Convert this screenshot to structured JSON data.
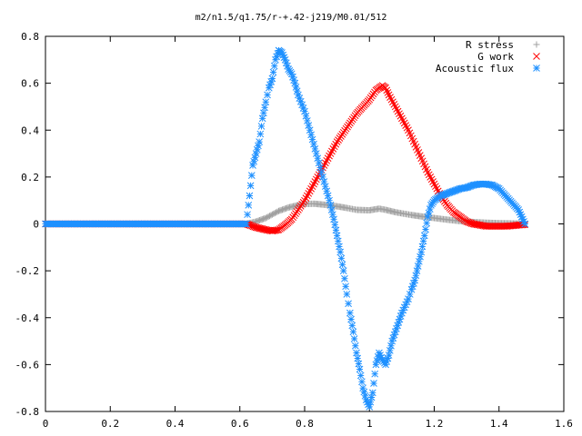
{
  "chart_data": {
    "type": "scatter",
    "title": "m2/n1.5/q1.75/r-+.42-j219/M0.01/512",
    "xlabel": "",
    "ylabel": "",
    "xlim": [
      0,
      1.6
    ],
    "ylim": [
      -0.8,
      0.8
    ],
    "xticks": [
      0,
      0.2,
      0.4,
      0.6,
      0.8,
      1,
      1.2,
      1.4,
      1.6
    ],
    "xtick_labels": [
      "0",
      "0.2",
      "0.4",
      "0.6",
      "0.8",
      "1",
      "1.2",
      "1.4",
      "1.6"
    ],
    "yticks": [
      -0.8,
      -0.6,
      -0.4,
      -0.2,
      0,
      0.2,
      0.4,
      0.6,
      0.8
    ],
    "ytick_labels": [
      "-0.8",
      "-0.6",
      "-0.4",
      "-0.2",
      "0",
      "0.2",
      "0.4",
      "0.6",
      "0.8"
    ],
    "grid": false,
    "legend_position": "top-right",
    "series": [
      {
        "name": "R stress",
        "marker": "plus",
        "color": "#a0a0a0",
        "points": [
          [
            0,
            0
          ],
          [
            0.2,
            0
          ],
          [
            0.4,
            0
          ],
          [
            0.62,
            0
          ],
          [
            0.63,
            0.003
          ],
          [
            0.65,
            0.01
          ],
          [
            0.68,
            0.025
          ],
          [
            0.7,
            0.04
          ],
          [
            0.72,
            0.055
          ],
          [
            0.75,
            0.07
          ],
          [
            0.78,
            0.08
          ],
          [
            0.8,
            0.085
          ],
          [
            0.83,
            0.086
          ],
          [
            0.86,
            0.082
          ],
          [
            0.9,
            0.075
          ],
          [
            0.93,
            0.068
          ],
          [
            0.96,
            0.06
          ],
          [
            1.0,
            0.058
          ],
          [
            1.03,
            0.065
          ],
          [
            1.05,
            0.06
          ],
          [
            1.08,
            0.05
          ],
          [
            1.1,
            0.045
          ],
          [
            1.13,
            0.038
          ],
          [
            1.16,
            0.032
          ],
          [
            1.2,
            0.025
          ],
          [
            1.24,
            0.018
          ],
          [
            1.28,
            0.012
          ],
          [
            1.32,
            0.008
          ],
          [
            1.36,
            0.005
          ],
          [
            1.4,
            0.003
          ],
          [
            1.44,
            0.002
          ],
          [
            1.48,
            0.001
          ]
        ]
      },
      {
        "name": "G work",
        "marker": "cross",
        "color": "#ff0000",
        "points": [
          [
            0,
            0
          ],
          [
            0.2,
            0
          ],
          [
            0.4,
            0
          ],
          [
            0.62,
            0
          ],
          [
            0.63,
            -0.005
          ],
          [
            0.65,
            -0.015
          ],
          [
            0.68,
            -0.025
          ],
          [
            0.7,
            -0.03
          ],
          [
            0.72,
            -0.025
          ],
          [
            0.74,
            -0.005
          ],
          [
            0.76,
            0.02
          ],
          [
            0.78,
            0.06
          ],
          [
            0.8,
            0.1
          ],
          [
            0.82,
            0.15
          ],
          [
            0.84,
            0.2
          ],
          [
            0.86,
            0.25
          ],
          [
            0.88,
            0.3
          ],
          [
            0.9,
            0.35
          ],
          [
            0.92,
            0.39
          ],
          [
            0.94,
            0.43
          ],
          [
            0.96,
            0.47
          ],
          [
            0.98,
            0.5
          ],
          [
            1.0,
            0.53
          ],
          [
            1.02,
            0.57
          ],
          [
            1.04,
            0.59
          ],
          [
            1.05,
            0.58
          ],
          [
            1.06,
            0.55
          ],
          [
            1.08,
            0.5
          ],
          [
            1.1,
            0.45
          ],
          [
            1.12,
            0.4
          ],
          [
            1.14,
            0.34
          ],
          [
            1.16,
            0.28
          ],
          [
            1.18,
            0.22
          ],
          [
            1.2,
            0.17
          ],
          [
            1.22,
            0.12
          ],
          [
            1.24,
            0.08
          ],
          [
            1.26,
            0.05
          ],
          [
            1.28,
            0.03
          ],
          [
            1.3,
            0.01
          ],
          [
            1.32,
            0.0
          ],
          [
            1.34,
            -0.005
          ],
          [
            1.36,
            -0.01
          ],
          [
            1.38,
            -0.01
          ],
          [
            1.4,
            -0.01
          ],
          [
            1.42,
            -0.01
          ],
          [
            1.44,
            -0.008
          ],
          [
            1.46,
            -0.005
          ],
          [
            1.48,
            -0.003
          ]
        ]
      },
      {
        "name": "Acoustic flux",
        "marker": "star",
        "color": "#1e90ff",
        "points": [
          [
            0,
            0
          ],
          [
            0.1,
            0
          ],
          [
            0.2,
            0
          ],
          [
            0.3,
            0
          ],
          [
            0.4,
            0
          ],
          [
            0.5,
            0
          ],
          [
            0.6,
            0
          ],
          [
            0.62,
            0
          ],
          [
            0.63,
            0.12
          ],
          [
            0.64,
            0.25
          ],
          [
            0.65,
            0.3
          ],
          [
            0.66,
            0.35
          ],
          [
            0.67,
            0.45
          ],
          [
            0.68,
            0.52
          ],
          [
            0.69,
            0.58
          ],
          [
            0.7,
            0.62
          ],
          [
            0.71,
            0.7
          ],
          [
            0.72,
            0.74
          ],
          [
            0.73,
            0.73
          ],
          [
            0.74,
            0.7
          ],
          [
            0.75,
            0.66
          ],
          [
            0.76,
            0.64
          ],
          [
            0.77,
            0.6
          ],
          [
            0.78,
            0.55
          ],
          [
            0.8,
            0.48
          ],
          [
            0.82,
            0.38
          ],
          [
            0.84,
            0.28
          ],
          [
            0.86,
            0.18
          ],
          [
            0.88,
            0.08
          ],
          [
            0.89,
            0.02
          ],
          [
            0.9,
            -0.05
          ],
          [
            0.91,
            -0.12
          ],
          [
            0.92,
            -0.2
          ],
          [
            0.93,
            -0.3
          ],
          [
            0.94,
            -0.38
          ],
          [
            0.95,
            -0.46
          ],
          [
            0.96,
            -0.55
          ],
          [
            0.97,
            -0.62
          ],
          [
            0.98,
            -0.7
          ],
          [
            0.99,
            -0.75
          ],
          [
            1.0,
            -0.78
          ],
          [
            1.01,
            -0.72
          ],
          [
            1.02,
            -0.6
          ],
          [
            1.03,
            -0.55
          ],
          [
            1.04,
            -0.58
          ],
          [
            1.05,
            -0.6
          ],
          [
            1.06,
            -0.56
          ],
          [
            1.07,
            -0.5
          ],
          [
            1.08,
            -0.46
          ],
          [
            1.09,
            -0.42
          ],
          [
            1.1,
            -0.38
          ],
          [
            1.12,
            -0.32
          ],
          [
            1.13,
            -0.28
          ],
          [
            1.14,
            -0.24
          ],
          [
            1.15,
            -0.18
          ],
          [
            1.16,
            -0.12
          ],
          [
            1.17,
            -0.05
          ],
          [
            1.18,
            0.03
          ],
          [
            1.19,
            0.08
          ],
          [
            1.2,
            0.1
          ],
          [
            1.22,
            0.12
          ],
          [
            1.24,
            0.13
          ],
          [
            1.26,
            0.14
          ],
          [
            1.28,
            0.15
          ],
          [
            1.3,
            0.155
          ],
          [
            1.32,
            0.165
          ],
          [
            1.34,
            0.17
          ],
          [
            1.36,
            0.17
          ],
          [
            1.38,
            0.165
          ],
          [
            1.4,
            0.15
          ],
          [
            1.42,
            0.12
          ],
          [
            1.44,
            0.09
          ],
          [
            1.46,
            0.06
          ],
          [
            1.47,
            0.03
          ],
          [
            1.48,
            0.0
          ]
        ]
      }
    ]
  }
}
